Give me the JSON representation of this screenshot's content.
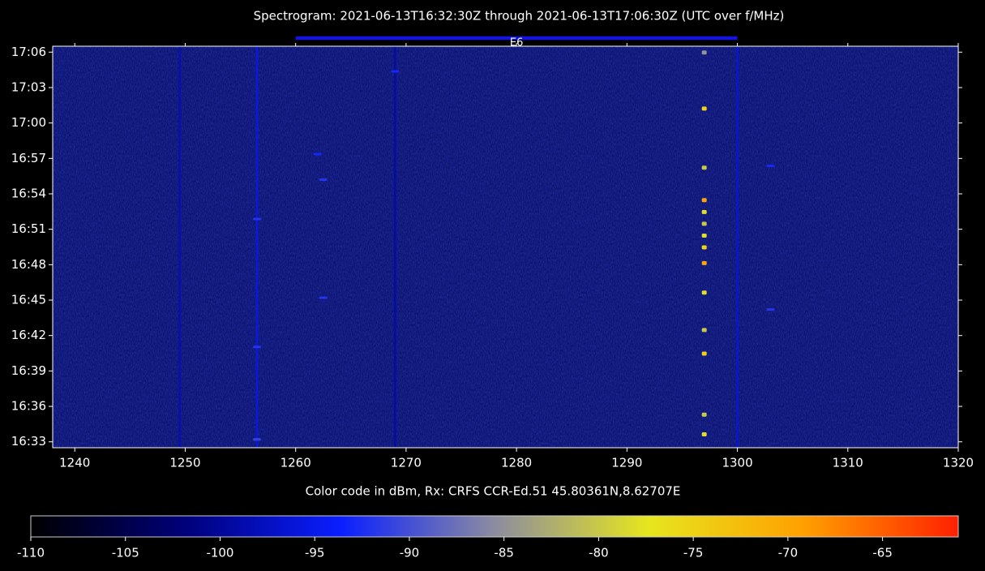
{
  "chart_data": {
    "type": "heatmap",
    "title": "Spectrogram: 2021-06-13T16:32:30Z  through  2021-06-13T17:06:30Z  (UTC over f/MHz)",
    "xlim": [
      1238,
      1320
    ],
    "xticks": [
      1240,
      1250,
      1260,
      1270,
      1280,
      1290,
      1300,
      1310,
      1320
    ],
    "ylim": [
      "16:32:30",
      "17:06:30"
    ],
    "yticks": [
      "16:33",
      "16:36",
      "16:39",
      "16:42",
      "16:45",
      "16:48",
      "16:51",
      "16:54",
      "16:57",
      "17:00",
      "17:03",
      "17:06"
    ],
    "band": {
      "label": "E6",
      "range": [
        1260,
        1300
      ],
      "color": "#1010ff"
    },
    "background_color": "#0a0f66",
    "streaks": [
      {
        "x": 1249.5,
        "value": -98
      },
      {
        "x": 1256.5,
        "value": -95
      },
      {
        "x": 1269,
        "value": -99
      },
      {
        "x": 1300,
        "value": -96
      }
    ],
    "signals": [
      {
        "x": 1297,
        "y": "17:06:00",
        "value": -85
      },
      {
        "x": 1297,
        "y": "17:01:15",
        "value": -75
      },
      {
        "x": 1297,
        "y": "16:56:15",
        "value": -80
      },
      {
        "x": 1297,
        "y": "16:53:30",
        "value": -70
      },
      {
        "x": 1297,
        "y": "16:52:30",
        "value": -78
      },
      {
        "x": 1297,
        "y": "16:51:30",
        "value": -80
      },
      {
        "x": 1297,
        "y": "16:50:30",
        "value": -78
      },
      {
        "x": 1297,
        "y": "16:49:30",
        "value": -75
      },
      {
        "x": 1297,
        "y": "16:48:10",
        "value": -70
      },
      {
        "x": 1297,
        "y": "16:45:40",
        "value": -78
      },
      {
        "x": 1297,
        "y": "16:42:30",
        "value": -80
      },
      {
        "x": 1297,
        "y": "16:40:30",
        "value": -75
      },
      {
        "x": 1297,
        "y": "16:35:20",
        "value": -80
      },
      {
        "x": 1297,
        "y": "16:33:40",
        "value": -78
      },
      {
        "x": 1262.5,
        "y": "16:55:10",
        "value": -92
      },
      {
        "x": 1262,
        "y": "16:57:20",
        "value": -93
      },
      {
        "x": 1262.5,
        "y": "16:45:10",
        "value": -92
      },
      {
        "x": 1269,
        "y": "17:04:20",
        "value": -93
      },
      {
        "x": 1303,
        "y": "16:44:10",
        "value": -92
      },
      {
        "x": 1303,
        "y": "16:56:20",
        "value": -93
      },
      {
        "x": 1256.5,
        "y": "16:51:50",
        "value": -92
      },
      {
        "x": 1256.5,
        "y": "16:41:00",
        "value": -92
      },
      {
        "x": 1256.5,
        "y": "16:33:10",
        "value": -91
      }
    ],
    "colorbar": {
      "label": "Color code in dBm, Rx: CRFS CCR-Ed.51 45.80361N,8.62707E",
      "clim": [
        -110,
        -61
      ],
      "ticks": [
        -110,
        -105,
        -100,
        -95,
        -90,
        -85,
        -80,
        -75,
        -70,
        -65
      ],
      "colormap": [
        "#000000",
        "#00007a",
        "#0a1eff",
        "#8c8ca0",
        "#e6e61e",
        "#ffa000",
        "#ff2000"
      ]
    }
  }
}
